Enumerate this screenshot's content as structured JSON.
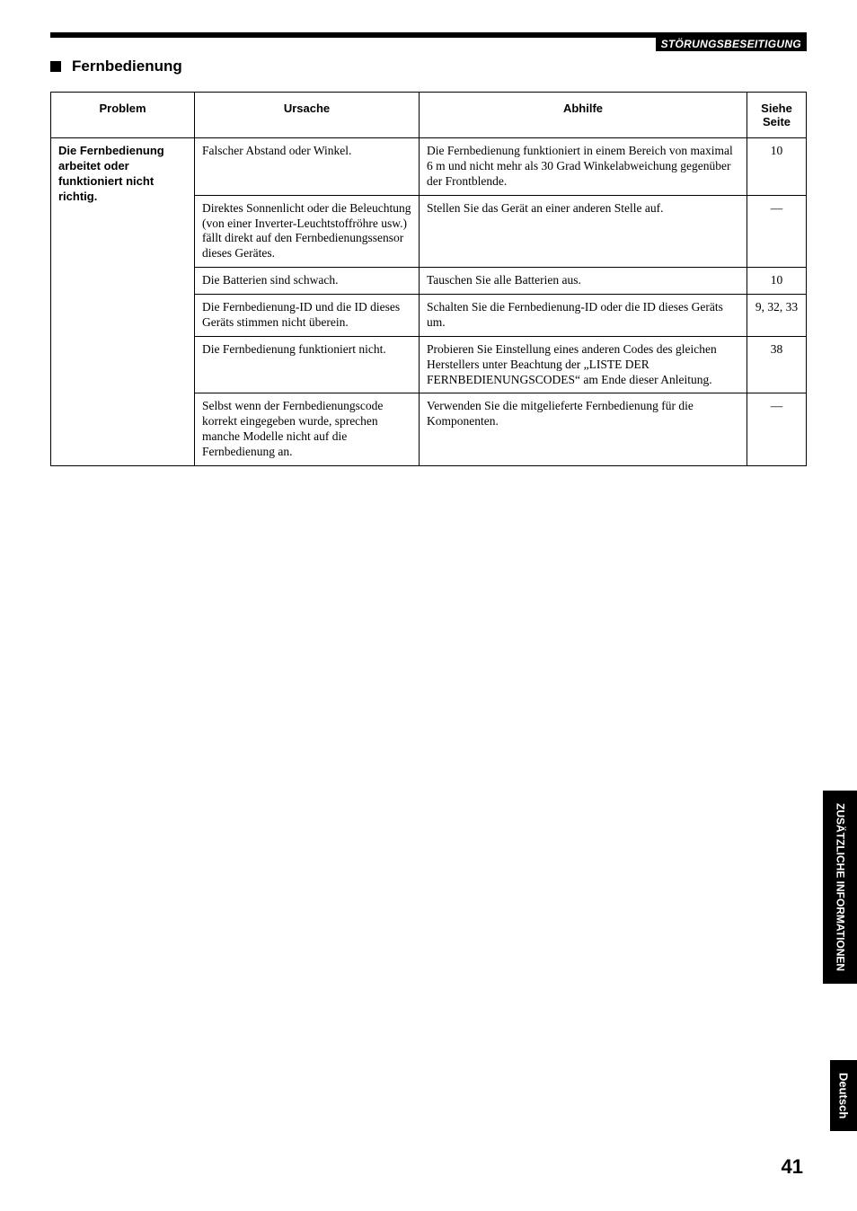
{
  "header": {
    "category": "STÖRUNGSBESEITIGUNG"
  },
  "section": {
    "title": "Fernbedienung"
  },
  "table": {
    "columns": [
      "Problem",
      "Ursache",
      "Abhilfe",
      "Siehe Seite"
    ],
    "problem": "Die Fernbedienung arbeitet oder funktioniert nicht richtig.",
    "rows": [
      {
        "cause": "Falscher Abstand oder Winkel.",
        "remedy": "Die Fernbedienung funktioniert in einem Bereich von maximal 6 m und nicht mehr als 30 Grad Winkelabweichung gegenüber der Frontblende.",
        "page": "10"
      },
      {
        "cause": "Direktes Sonnenlicht oder die Beleuchtung (von einer Inverter-Leuchtstoffröhre usw.) fällt direkt auf den Fernbedienungssensor dieses Gerätes.",
        "remedy": "Stellen Sie das Gerät an einer anderen Stelle auf.",
        "page": "—"
      },
      {
        "cause": "Die Batterien sind schwach.",
        "remedy": "Tauschen Sie alle Batterien aus.",
        "page": "10"
      },
      {
        "cause": "Die Fernbedienung-ID und die ID dieses Geräts stimmen nicht überein.",
        "remedy": "Schalten Sie die Fernbedienung-ID oder die ID dieses Geräts um.",
        "page": "9, 32, 33"
      },
      {
        "cause": "Die Fernbedienung funktioniert nicht.",
        "remedy": "Probieren Sie Einstellung eines anderen Codes des gleichen Herstellers unter Beachtung der „LISTE DER FERNBEDIENUNGSCODES“ am Ende dieser Anleitung.",
        "page": "38"
      },
      {
        "cause": "Selbst wenn der Fernbedienungscode korrekt eingegeben wurde, sprechen manche Modelle nicht auf die Fernbedienung an.",
        "remedy": "Verwenden Sie die mitgelieferte Fernbedienung für die Komponenten.",
        "page": "—"
      }
    ]
  },
  "sideTabs": {
    "info": "ZUSÄTZLICHE INFORMATIONEN",
    "lang": "Deutsch"
  },
  "pageNumber": "41"
}
